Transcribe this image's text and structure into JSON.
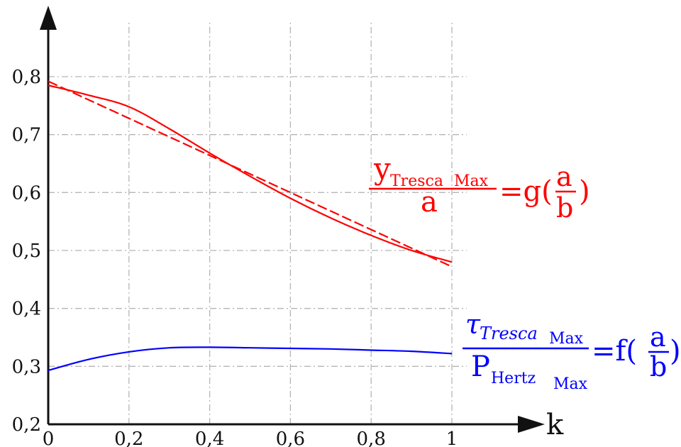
{
  "chart_data": {
    "type": "line",
    "xlabel": "k",
    "ylabel": "",
    "xlim": [
      0,
      1
    ],
    "ylim": [
      0.2,
      0.8
    ],
    "grid": true,
    "x_ticks": [
      "0",
      "0,2",
      "0,4",
      "0,6",
      "0,8",
      "1"
    ],
    "y_ticks": [
      "0,2",
      "0,3",
      "0,4",
      "0,5",
      "0,6",
      "0,7",
      "0,8"
    ],
    "series": [
      {
        "color": "#ff0000",
        "style": "solid",
        "x": [
          0,
          0.1,
          0.2,
          0.3,
          0.4,
          0.5,
          0.6,
          0.7,
          0.8,
          0.9,
          1.0
        ],
        "y": [
          0.785,
          0.768,
          0.748,
          0.71,
          0.668,
          0.628,
          0.59,
          0.556,
          0.526,
          0.5,
          0.48
        ]
      },
      {
        "color": "#ff0000",
        "style": "dashed",
        "x": [
          0,
          1.0
        ],
        "y": [
          0.792,
          0.472
        ]
      },
      {
        "color": "#0000ff",
        "style": "solid",
        "x": [
          0,
          0.1,
          0.2,
          0.3,
          0.4,
          0.5,
          0.6,
          0.7,
          0.8,
          0.9,
          1.0
        ],
        "y": [
          0.293,
          0.312,
          0.325,
          0.332,
          0.333,
          0.332,
          0.331,
          0.33,
          0.328,
          0.326,
          0.322
        ]
      }
    ],
    "annotations": [
      {
        "color": "#ff0000",
        "numerator": "y",
        "numerator_sub": "Tresca",
        "numerator_subsub": "Max",
        "denominator": "a",
        "equals": "=g(",
        "inner_numerator": "a",
        "inner_denominator": "b",
        "close": ")"
      },
      {
        "color": "#0000ff",
        "numerator": "τ",
        "numerator_sub": "Tresca",
        "numerator_subsub": "Max",
        "denominator": "P",
        "denominator_sub": "Hertz",
        "denominator_subsub": "Max",
        "equals": "=f(",
        "inner_numerator": "a",
        "inner_denominator": "b",
        "close": ")"
      }
    ]
  }
}
